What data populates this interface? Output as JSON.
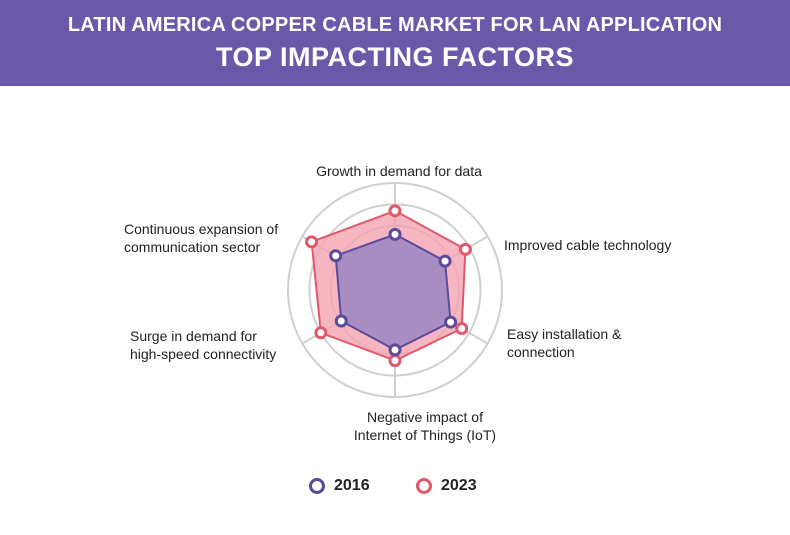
{
  "header": {
    "line1": "LATIN AMERICA COPPER CABLE MARKET FOR LAN APPLICATION",
    "line2": "TOP IMPACTING FACTORS"
  },
  "chart_data": {
    "type": "radar",
    "axes": [
      [
        "Growth in demand for data"
      ],
      [
        "Improved cable technology"
      ],
      [
        "Easy installation &",
        "connection"
      ],
      [
        "Negative impact of",
        "Internet of Things (IoT)"
      ],
      [
        "Surge in demand for",
        "high-speed connectivity"
      ],
      [
        "Continuous expansion of",
        "communication sector"
      ]
    ],
    "rmax": 5,
    "rings": [
      1,
      2,
      3,
      4,
      5
    ],
    "series": [
      {
        "name": "2016",
        "values": [
          2.6,
          2.7,
          3.0,
          2.8,
          2.9,
          3.2
        ],
        "color": "#5b4b9a"
      },
      {
        "name": "2023",
        "values": [
          3.7,
          3.8,
          3.6,
          3.3,
          4.0,
          4.5
        ],
        "color": "#e0596b"
      }
    ],
    "colors": {
      "ring": "#cfcfcf",
      "fill_2023": "#f4a2b0",
      "fill_2016": "#9b86c2"
    }
  }
}
